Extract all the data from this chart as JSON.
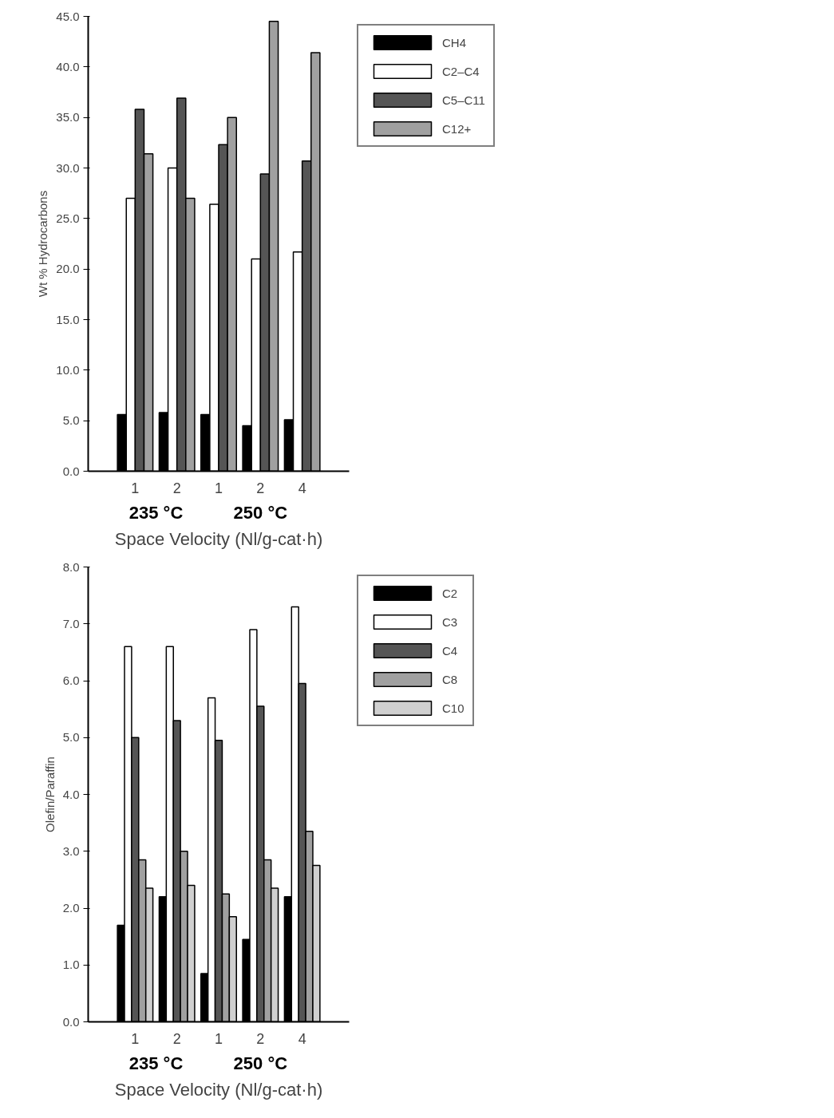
{
  "chart_data": [
    {
      "type": "bar",
      "ylabel": "Wt % Hydrocarbons",
      "xlabel": "Space Velocity (Nl/g-cat·h)",
      "categories": [
        "1",
        "2",
        "1",
        "2",
        "4"
      ],
      "annotations": [
        "235 °C",
        "250 °C"
      ],
      "ylim": [
        0,
        45
      ],
      "yticks": [
        {
          "value": 0,
          "label": "0.0"
        },
        {
          "value": 5,
          "label": "5.0"
        },
        {
          "value": 10,
          "label": "10.0"
        },
        {
          "value": 15,
          "label": "15.0"
        },
        {
          "value": 20,
          "label": "20.0"
        },
        {
          "value": 25,
          "label": "25.0"
        },
        {
          "value": 30,
          "label": "30.0"
        },
        {
          "value": 35,
          "label": "35.0"
        },
        {
          "value": 40,
          "label": "40.0"
        },
        {
          "value": 45,
          "label": "45.0"
        }
      ],
      "grid": false,
      "legend": "top right",
      "series": [
        {
          "name": "CH4",
          "color": "#000000",
          "values": [
            5.6,
            5.8,
            5.6,
            4.5,
            5.1
          ]
        },
        {
          "name": "C2–C4",
          "color": "#ffffff",
          "values": [
            27.0,
            30.0,
            26.4,
            21.0,
            21.7
          ]
        },
        {
          "name": "C5–C11",
          "color": "#555555",
          "values": [
            35.8,
            36.9,
            32.3,
            29.4,
            30.7
          ]
        },
        {
          "name": "C12+",
          "color": "#a0a0a0",
          "values": [
            31.4,
            27.0,
            35.0,
            44.5,
            41.4
          ]
        }
      ]
    },
    {
      "type": "bar",
      "ylabel": "Olefin/Paraffin",
      "xlabel": "Space Velocity (Nl/g-cat·h)",
      "categories": [
        "1",
        "2",
        "1",
        "2",
        "4"
      ],
      "annotations": [
        "235 °C",
        "250 °C"
      ],
      "ylim": [
        0,
        8
      ],
      "yticks": [
        {
          "value": 0,
          "label": "0.0"
        },
        {
          "value": 1,
          "label": "1.0"
        },
        {
          "value": 2,
          "label": "2.0"
        },
        {
          "value": 3,
          "label": "3.0"
        },
        {
          "value": 4,
          "label": "4.0"
        },
        {
          "value": 5,
          "label": "5.0"
        },
        {
          "value": 6,
          "label": "6.0"
        },
        {
          "value": 7,
          "label": "7.0"
        },
        {
          "value": 8,
          "label": "8.0"
        }
      ],
      "grid": false,
      "legend": "top right",
      "series": [
        {
          "name": "C2",
          "color": "#000000",
          "values": [
            1.7,
            2.2,
            0.85,
            1.45,
            2.2
          ]
        },
        {
          "name": "C3",
          "color": "#ffffff",
          "values": [
            6.6,
            6.6,
            5.7,
            6.9,
            7.3
          ]
        },
        {
          "name": "C4",
          "color": "#555555",
          "values": [
            5.0,
            5.3,
            4.95,
            5.55,
            5.95
          ]
        },
        {
          "name": "C8",
          "color": "#a0a0a0",
          "values": [
            2.85,
            3.0,
            2.25,
            2.85,
            3.35
          ]
        },
        {
          "name": "C10",
          "color": "#d0d0d0",
          "values": [
            2.35,
            2.4,
            1.85,
            2.35,
            2.75
          ]
        }
      ]
    }
  ]
}
